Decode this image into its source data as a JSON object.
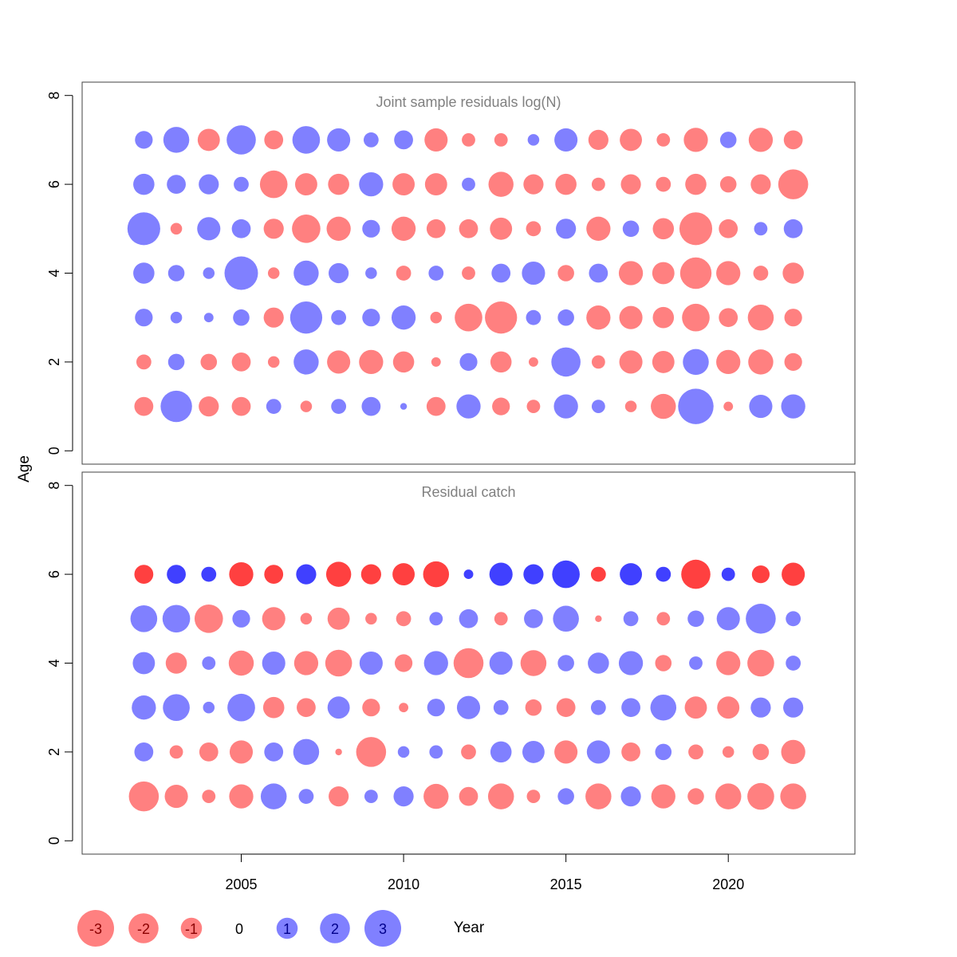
{
  "colors": {
    "negative": "#FF8080",
    "positive": "#8080FF",
    "negative_dark": "#FF4040",
    "positive_dark": "#4040FF",
    "title": "#808080",
    "axis": "#000000",
    "frame": "#404040"
  },
  "axis_labels": {
    "y": "Age",
    "x": "Year"
  },
  "chart_data": [
    {
      "type": "scatter",
      "subtype": "bubble",
      "title": "Joint sample residuals log(N)",
      "xlim": [
        2000.1,
        2023.9
      ],
      "ylim": [
        -0.3,
        8.3
      ],
      "y_ticks": [
        0,
        2,
        4,
        6,
        8
      ],
      "x": [
        2002,
        2003,
        2004,
        2005,
        2006,
        2007,
        2008,
        2009,
        2010,
        2011,
        2012,
        2013,
        2014,
        2015,
        2016,
        2017,
        2018,
        2019,
        2020,
        2021,
        2022
      ],
      "ages": [
        1,
        2,
        3,
        4,
        5,
        6,
        7
      ],
      "residuals": [
        [
          -0.8,
          2.2,
          -0.9,
          -0.8,
          0.5,
          -0.3,
          0.5,
          0.8,
          0.1,
          -0.8,
          1.3,
          -0.7,
          -0.4,
          1.3,
          0.4,
          -0.3,
          -1.4,
          2.8,
          -0.2,
          1.2,
          1.3
        ],
        [
          -0.5,
          0.6,
          -0.6,
          -0.8,
          -0.3,
          1.4,
          -1.2,
          -1.3,
          -1.0,
          -0.2,
          0.7,
          -1.0,
          -0.2,
          1.9,
          -0.4,
          -1.2,
          -1.1,
          1.5,
          -1.3,
          -1.4,
          -0.7
        ],
        [
          0.7,
          0.3,
          0.2,
          0.6,
          -0.9,
          2.3,
          0.5,
          0.7,
          1.3,
          -0.3,
          -1.7,
          -2.3,
          0.5,
          0.6,
          -1.3,
          -1.2,
          -1.0,
          -1.7,
          -0.8,
          -1.5,
          -0.7
        ],
        [
          1.0,
          0.6,
          0.3,
          2.5,
          -0.3,
          1.4,
          0.9,
          0.3,
          -0.5,
          0.5,
          -0.4,
          0.8,
          1.2,
          -0.6,
          0.8,
          -1.3,
          -1.1,
          -2.2,
          -1.3,
          -0.5,
          -1.0
        ],
        [
          2.4,
          -0.3,
          1.2,
          0.8,
          -0.9,
          -1.8,
          -1.3,
          0.7,
          -1.3,
          -0.8,
          -0.8,
          -1.1,
          -0.5,
          0.9,
          -1.3,
          0.6,
          -1.0,
          -2.4,
          -0.8,
          0.4,
          0.8
        ],
        [
          1.0,
          0.8,
          0.9,
          0.5,
          -1.7,
          -1.1,
          -1.0,
          1.3,
          -1.1,
          -1.1,
          0.4,
          -1.4,
          -0.9,
          -1.0,
          -0.4,
          -0.9,
          -0.5,
          -1.0,
          -0.6,
          -0.9,
          -2.0
        ],
        [
          0.7,
          1.5,
          -1.1,
          1.9,
          -0.8,
          1.7,
          1.2,
          0.5,
          0.8,
          -1.2,
          -0.4,
          -0.4,
          0.3,
          1.2,
          -0.9,
          -1.1,
          -0.4,
          -1.3,
          0.6,
          -1.3,
          -0.8
        ]
      ]
    },
    {
      "type": "scatter",
      "subtype": "bubble",
      "title": "Residual catch",
      "xlim": [
        2000.1,
        2023.9
      ],
      "ylim": [
        -0.3,
        8.3
      ],
      "y_ticks": [
        0,
        2,
        4,
        6,
        8
      ],
      "x": [
        2002,
        2003,
        2004,
        2005,
        2006,
        2007,
        2008,
        2009,
        2010,
        2011,
        2012,
        2013,
        2014,
        2015,
        2016,
        2017,
        2018,
        2019,
        2020,
        2021,
        2022
      ],
      "x_ticks": [
        2005,
        2010,
        2015,
        2020
      ],
      "ages": [
        1,
        2,
        3,
        4,
        5,
        6
      ],
      "plus_group_age": 6,
      "residuals": [
        [
          -2.0,
          -1.2,
          -0.4,
          -1.3,
          1.5,
          0.5,
          -0.9,
          0.4,
          0.9,
          -1.4,
          -0.8,
          -1.5,
          -0.4,
          0.6,
          -1.5,
          0.9,
          -1.3,
          -0.6,
          -1.5,
          -1.6,
          -1.5
        ],
        [
          0.8,
          -0.4,
          -0.8,
          -1.2,
          0.8,
          1.5,
          -0.1,
          -2.0,
          0.3,
          0.4,
          -0.5,
          1.0,
          1.1,
          -1.2,
          1.2,
          -0.8,
          0.6,
          -0.5,
          -0.3,
          -0.6,
          -1.3
        ],
        [
          1.3,
          1.6,
          0.3,
          1.7,
          -1.0,
          -0.8,
          1.1,
          -0.7,
          -0.2,
          0.7,
          1.2,
          0.5,
          -0.6,
          -0.8,
          0.5,
          0.8,
          1.5,
          -1.1,
          -1.1,
          0.9,
          0.9
        ],
        [
          1.1,
          -1.0,
          0.4,
          -1.4,
          1.2,
          -1.3,
          -1.6,
          1.2,
          -0.7,
          1.3,
          -2.0,
          1.2,
          -1.5,
          0.6,
          1.0,
          1.3,
          -0.6,
          0.4,
          -1.3,
          -1.6,
          0.5
        ],
        [
          1.6,
          1.7,
          -1.8,
          0.7,
          -1.2,
          -0.3,
          -1.1,
          -0.3,
          -0.5,
          0.4,
          0.8,
          -0.4,
          0.8,
          1.5,
          -0.1,
          0.5,
          -0.4,
          0.6,
          1.2,
          2.0,
          0.5
        ],
        [
          -0.8,
          0.8,
          0.5,
          -1.3,
          -0.8,
          0.9,
          -1.4,
          -0.9,
          -1.1,
          -1.5,
          0.2,
          1.2,
          0.9,
          1.7,
          -0.5,
          1.1,
          0.5,
          -1.9,
          0.4,
          -0.7,
          -1.2
        ]
      ]
    }
  ],
  "legend": {
    "placement": "bottom-left",
    "items": [
      {
        "value": -3,
        "label": "-3"
      },
      {
        "value": -2,
        "label": "-2"
      },
      {
        "value": -1,
        "label": "-1"
      },
      {
        "value": 0,
        "label": "0"
      },
      {
        "value": 1,
        "label": "1"
      },
      {
        "value": 2,
        "label": "2"
      },
      {
        "value": 3,
        "label": "3"
      }
    ]
  }
}
